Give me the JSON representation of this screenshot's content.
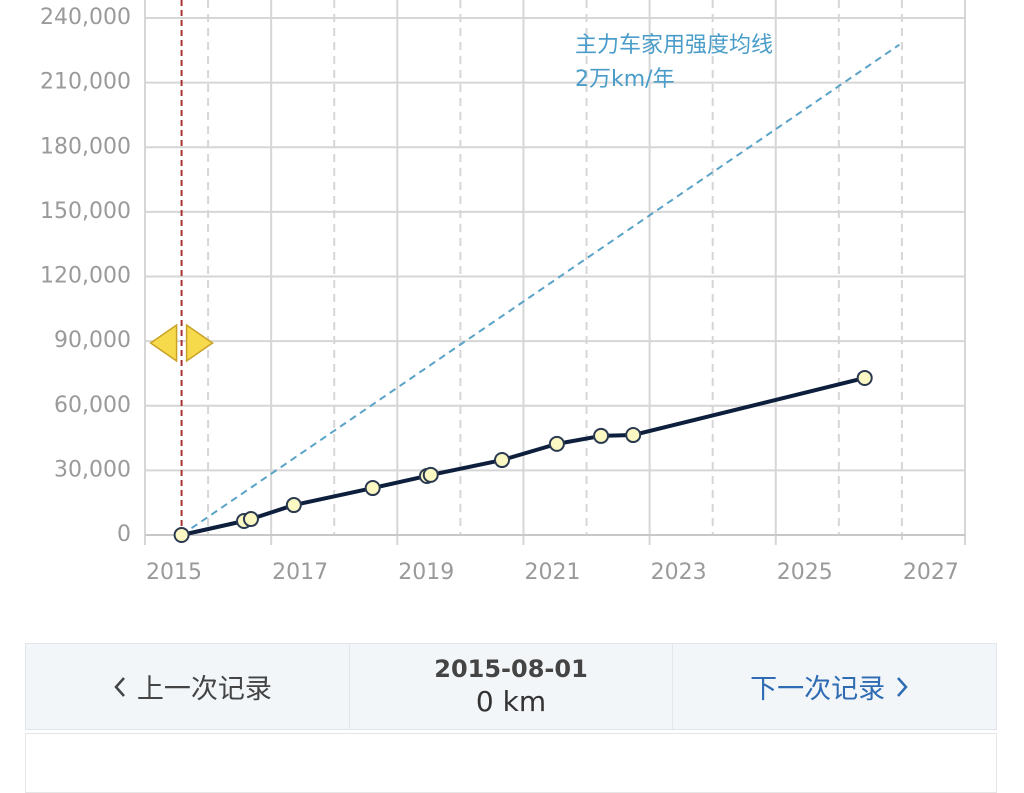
{
  "chart_data": {
    "type": "line",
    "annotation": [
      "主力车家用强度均线",
      "2万km/年"
    ],
    "annotation_color": "#4a9cc9",
    "x": [
      2015.58,
      2016.57,
      2016.68,
      2017.36,
      2018.61,
      2019.47,
      2019.53,
      2020.66,
      2021.53,
      2022.23,
      2022.74,
      2026.41
    ],
    "series": [
      {
        "color": "#0d1f3c",
        "marker_fill": "#fbf8c4",
        "values": [
          0,
          6500,
          7400,
          13900,
          21800,
          27400,
          27900,
          34800,
          42300,
          46000,
          46400,
          72900
        ]
      }
    ],
    "reference_line": {
      "x": [
        2015.58,
        2026.96
      ],
      "values": [
        0,
        227600
      ],
      "color": "#5aa3c8"
    },
    "selected_index": 0,
    "selected_color": "#a83232",
    "xlim": [
      2015,
      2028
    ],
    "xticks": [
      2015,
      2017,
      2019,
      2021,
      2023,
      2025,
      2027
    ],
    "ylim": [
      0,
      240000
    ],
    "yticks": [
      0,
      {
        "value": 30000,
        "label": "30,000"
      },
      {
        "value": 60000,
        "label": "60,000"
      },
      {
        "value": 90000,
        "label": "90,000"
      },
      {
        "value": 120000,
        "label": "120,000"
      },
      {
        "value": 150000,
        "label": "150,000"
      },
      {
        "value": 180000,
        "label": "180,000"
      },
      {
        "value": 210000,
        "label": "210,000"
      },
      {
        "value": 240000,
        "label": "240,000"
      }
    ],
    "grid": true
  },
  "navigation": {
    "prev": "上一次记录",
    "date": "2015-08-01",
    "distance": "0 km",
    "next": "下一次记录"
  }
}
